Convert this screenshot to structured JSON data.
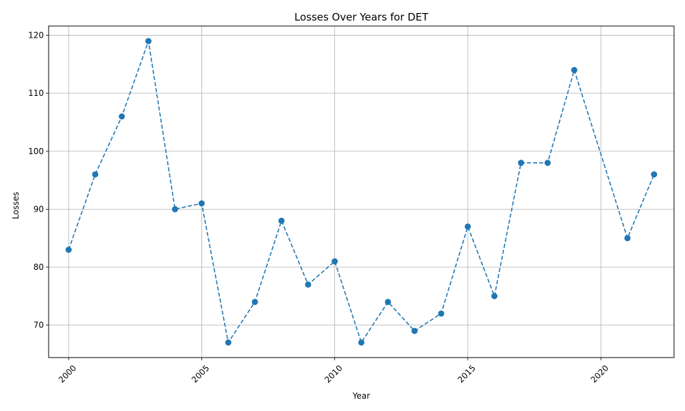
{
  "chart_data": {
    "type": "line",
    "title": "Losses Over Years for DET",
    "xlabel": "Year",
    "ylabel": "Losses",
    "xlim": [
      1999.25,
      2022.75
    ],
    "ylim": [
      64.4,
      121.6
    ],
    "xticks": [
      2000,
      2005,
      2010,
      2015,
      2020
    ],
    "yticks": [
      70,
      80,
      90,
      100,
      110,
      120
    ],
    "grid": true,
    "line_style": "dashed",
    "marker": "circle",
    "color": "#1f77b4",
    "x": [
      2000,
      2001,
      2002,
      2003,
      2004,
      2005,
      2006,
      2007,
      2008,
      2009,
      2010,
      2011,
      2012,
      2013,
      2014,
      2015,
      2016,
      2017,
      2018,
      2019,
      2021,
      2022
    ],
    "y": [
      83,
      96,
      106,
      119,
      90,
      91,
      67,
      74,
      88,
      77,
      81,
      67,
      74,
      69,
      72,
      87,
      75,
      98,
      98,
      114,
      85,
      96
    ]
  }
}
